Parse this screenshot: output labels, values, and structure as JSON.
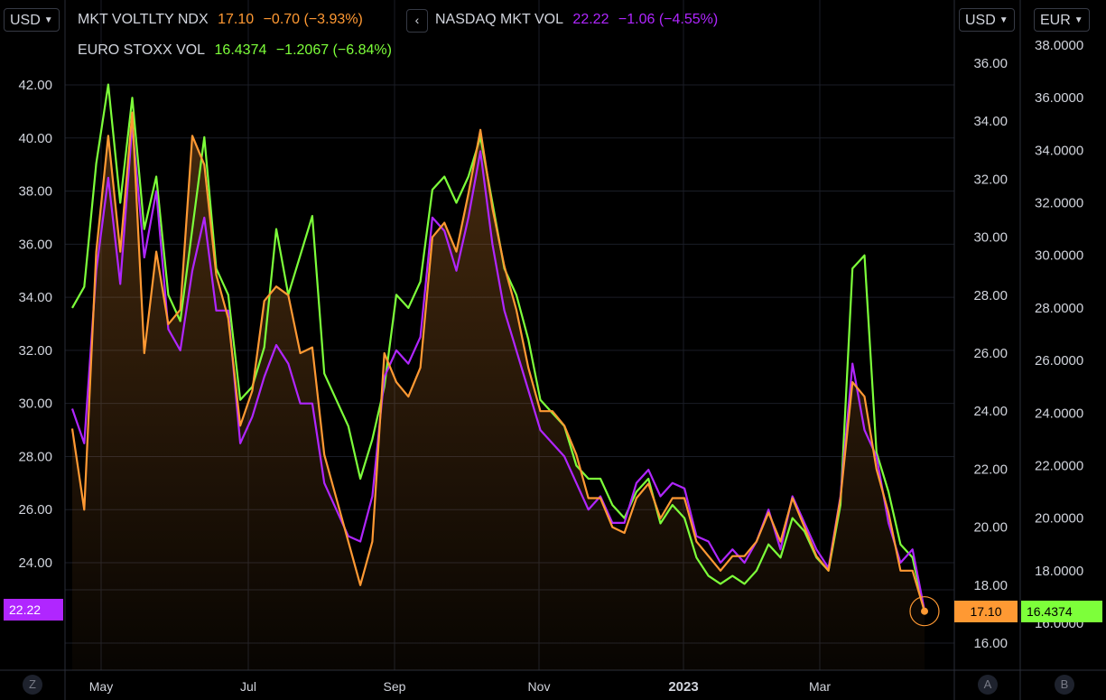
{
  "currencies": {
    "left": "USD",
    "right_a": "USD",
    "right_b": "EUR"
  },
  "legend": {
    "series1": {
      "name": "MKT VOLTLTY NDX",
      "value": "17.10",
      "change": "−0.70 (−3.93%)",
      "color": "#ff9933"
    },
    "series2": {
      "name": "NASDAQ MKT VOL",
      "value": "22.22",
      "change": "−1.06 (−4.55%)",
      "color": "#b026ff"
    },
    "series3": {
      "name": "EURO STOXX VOL",
      "value": "16.4374",
      "change": "−1.2067 (−6.84%)",
      "color": "#7dff3a"
    }
  },
  "collapse_icon": "chevron-left-icon",
  "badges": {
    "left": "22.22",
    "right_a": "17.10",
    "right_b": "16.4374"
  },
  "scale_buttons": {
    "left": "Z",
    "right_a": "A",
    "right_b": "B"
  },
  "chart_data": {
    "type": "line",
    "axes": {
      "left": {
        "ticks": [
          "42.00",
          "40.00",
          "38.00",
          "36.00",
          "34.00",
          "32.00",
          "30.00",
          "28.00",
          "26.00",
          "24.00"
        ],
        "ylim": [
          20.0,
          44.0
        ]
      },
      "right_a": {
        "ticks": [
          "36.00",
          "34.00",
          "32.00",
          "30.00",
          "28.00",
          "26.00",
          "24.00",
          "22.00",
          "20.00",
          "18.00",
          "16.00"
        ],
        "ylim": [
          15.0,
          37.0
        ]
      },
      "right_b": {
        "ticks": [
          "38.0000",
          "36.0000",
          "34.0000",
          "32.0000",
          "30.0000",
          "28.0000",
          "26.0000",
          "24.0000",
          "22.0000",
          "20.0000",
          "18.0000",
          "16.0000"
        ],
        "ylim": [
          15.0,
          39.0
        ]
      }
    },
    "x_ticks": [
      "May",
      "Jul",
      "Sep",
      "Nov",
      "2023",
      "Mar"
    ],
    "x": [
      0,
      5,
      10,
      15,
      20,
      25,
      30,
      35,
      40,
      45,
      50,
      55,
      60,
      65,
      70,
      75,
      80,
      85,
      90,
      95,
      100,
      105,
      110,
      115,
      120,
      125,
      130,
      135,
      140,
      145,
      150,
      155,
      160,
      165,
      170,
      175,
      180,
      185,
      190,
      195,
      200,
      205,
      210,
      215,
      220,
      225,
      230,
      235,
      240,
      245,
      250,
      255,
      260,
      265,
      270,
      275,
      280,
      285,
      290,
      295,
      300,
      305,
      310,
      315,
      320,
      325,
      330,
      335,
      340,
      345,
      350,
      355
    ],
    "series": [
      {
        "name": "MKT VOLTLTY NDX",
        "axis": "right_a",
        "color": "#ff9933",
        "values": [
          23.4,
          20.6,
          29.5,
          33.5,
          29.5,
          34.3,
          26.0,
          29.5,
          27.0,
          27.5,
          33.5,
          32.5,
          28.7,
          27.2,
          23.5,
          24.7,
          27.8,
          28.3,
          28.0,
          26.0,
          26.2,
          22.5,
          21.0,
          19.5,
          18.0,
          19.5,
          26.0,
          25.0,
          24.5,
          25.5,
          30.0,
          30.5,
          29.5,
          31.5,
          33.7,
          31.0,
          29.0,
          27.5,
          25.5,
          24.0,
          24.0,
          23.5,
          22.5,
          21.0,
          21.0,
          20.0,
          19.8,
          21.0,
          21.5,
          20.3,
          21.0,
          21.0,
          19.5,
          19.0,
          18.5,
          19.0,
          19.0,
          19.5,
          20.5,
          19.5,
          21.0,
          20.0,
          19.0,
          18.5,
          21.0,
          25.0,
          24.5,
          22.0,
          20.5,
          18.5,
          18.5,
          17.1
        ]
      },
      {
        "name": "NASDAQ MKT VOL",
        "axis": "left",
        "color": "#b026ff",
        "values": [
          29.8,
          28.5,
          35.0,
          38.5,
          34.5,
          40.5,
          35.5,
          38.0,
          32.8,
          32.0,
          35.0,
          37.0,
          33.5,
          33.5,
          28.5,
          29.5,
          31.0,
          32.2,
          31.5,
          30.0,
          30.0,
          27.0,
          26.0,
          25.0,
          24.8,
          26.5,
          31.0,
          32.0,
          31.5,
          32.5,
          37.0,
          36.5,
          35.0,
          37.0,
          39.5,
          36.0,
          33.5,
          32.0,
          30.5,
          29.0,
          28.5,
          28.0,
          27.0,
          26.0,
          26.5,
          25.5,
          25.5,
          27.0,
          27.5,
          26.5,
          27.0,
          26.8,
          25.0,
          24.8,
          24.0,
          24.5,
          24.0,
          24.8,
          26.0,
          24.5,
          26.5,
          25.5,
          24.5,
          23.8,
          26.5,
          31.5,
          29.0,
          28.0,
          25.5,
          24.0,
          24.5,
          22.2
        ]
      },
      {
        "name": "EURO STOXX VOL",
        "axis": "right_b",
        "color": "#7dff3a",
        "values": [
          28.0,
          28.8,
          33.5,
          36.5,
          32.0,
          36.0,
          31.0,
          33.0,
          28.5,
          27.5,
          31.0,
          34.5,
          29.5,
          28.5,
          24.5,
          25.0,
          26.5,
          31.0,
          28.5,
          30.0,
          31.5,
          25.5,
          24.5,
          23.5,
          21.5,
          23.0,
          25.0,
          28.5,
          28.0,
          29.0,
          32.5,
          33.0,
          32.0,
          33.0,
          34.5,
          32.0,
          29.5,
          28.5,
          26.8,
          24.5,
          24.0,
          23.5,
          22.0,
          21.5,
          21.5,
          20.5,
          20.0,
          21.0,
          21.5,
          19.8,
          20.5,
          20.0,
          18.5,
          17.8,
          17.5,
          17.8,
          17.5,
          18.0,
          19.0,
          18.5,
          20.0,
          19.5,
          18.5,
          18.0,
          20.5,
          29.5,
          30.0,
          22.5,
          21.0,
          19.0,
          18.5,
          16.4
        ]
      }
    ]
  }
}
